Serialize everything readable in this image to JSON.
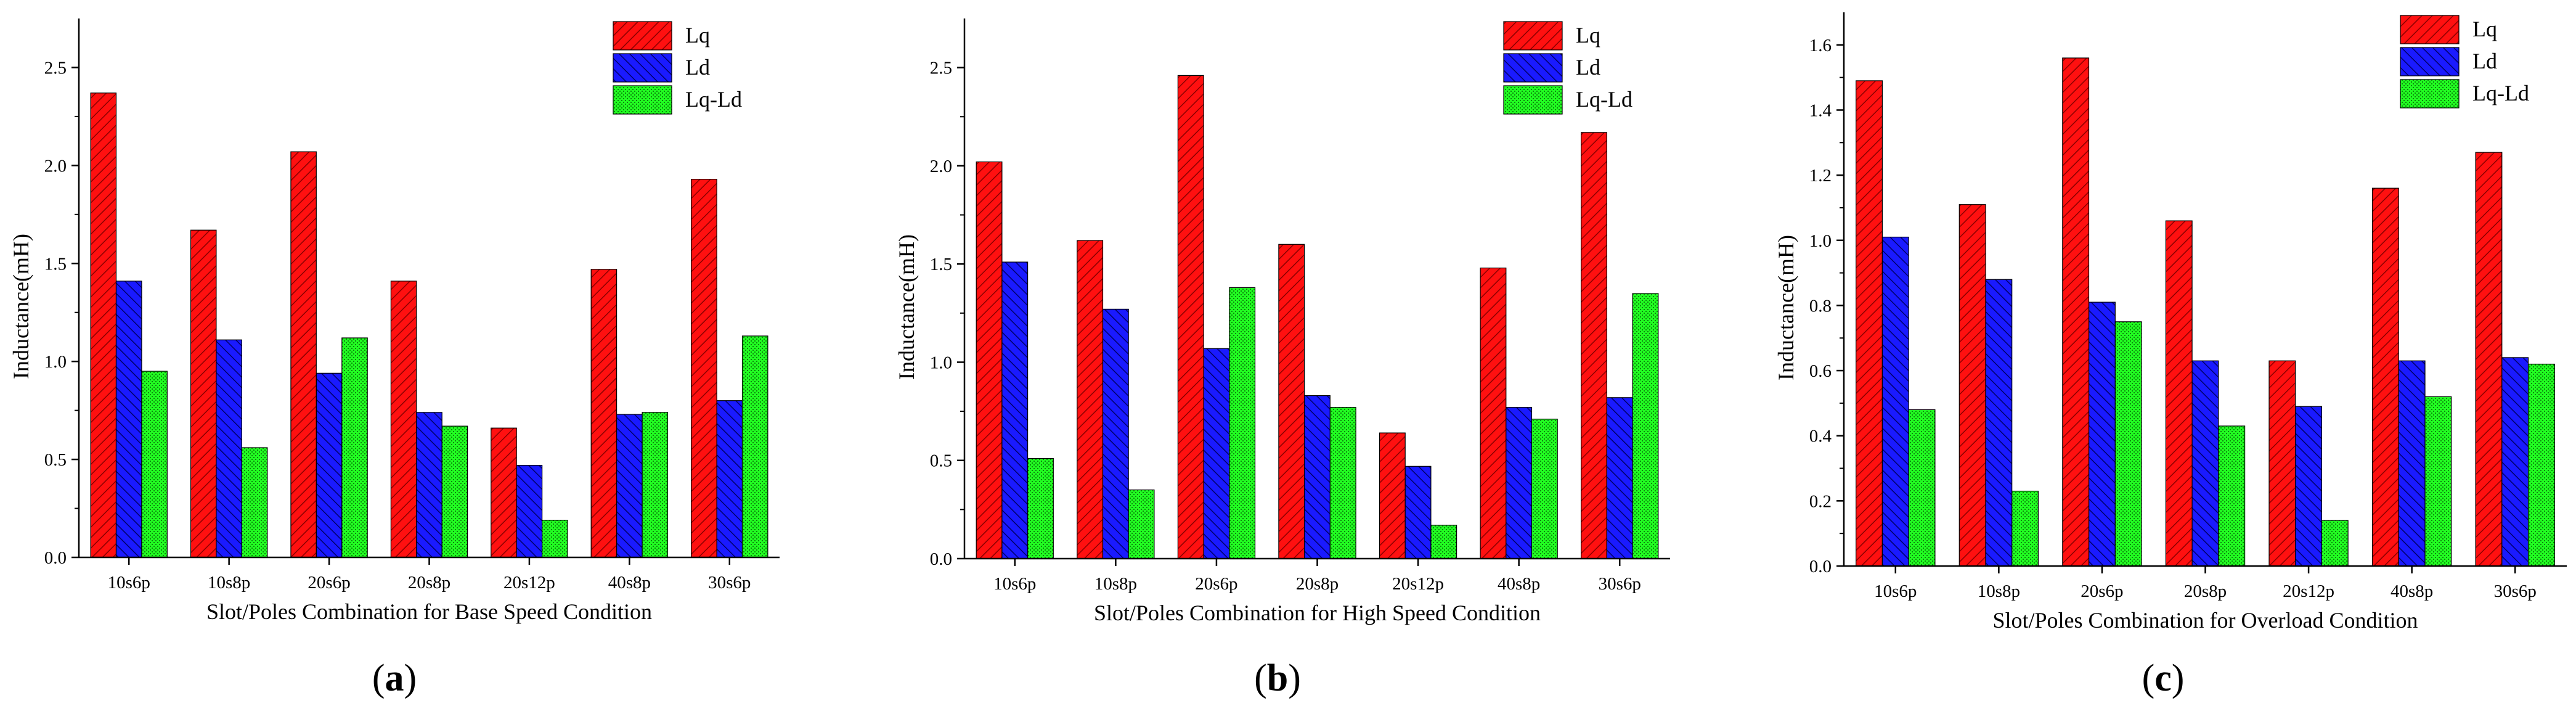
{
  "colors": {
    "Lq": "#ff1010",
    "Ld": "#1a1aff",
    "Lq-Ld": "#22ff22",
    "axis": "#000000"
  },
  "chart_data": [
    {
      "type": "bar",
      "panel": "a",
      "panel_label": {
        "open": "(",
        "letter": "a",
        "close": ")"
      },
      "xlabel": "Slot/Poles Combination for Base Speed Condition",
      "ylabel": "Inductance(mH)",
      "ylim": [
        0,
        2.75
      ],
      "yticks": [
        0.0,
        0.5,
        1.0,
        1.5,
        2.0,
        2.5
      ],
      "ytick_labels": [
        "0.0",
        "0.5",
        "1.0",
        "1.5",
        "2.0",
        "2.5"
      ],
      "categories": [
        "10s6p",
        "10s8p",
        "20s6p",
        "20s8p",
        "20s12p",
        "40s8p",
        "30s6p"
      ],
      "legend_position": "top-right",
      "series": [
        {
          "name": "Lq",
          "values": [
            2.37,
            1.67,
            2.07,
            1.41,
            0.66,
            1.47,
            1.93
          ]
        },
        {
          "name": "Ld",
          "values": [
            1.41,
            1.11,
            0.94,
            0.74,
            0.47,
            0.73,
            0.8
          ]
        },
        {
          "name": "Lq-Ld",
          "values": [
            0.95,
            0.56,
            1.12,
            0.67,
            0.19,
            0.74,
            1.13
          ]
        }
      ]
    },
    {
      "type": "bar",
      "panel": "b",
      "panel_label": {
        "open": "(",
        "letter": "b",
        "close": ")"
      },
      "xlabel": "Slot/Poles Combination for High Speed Condition",
      "ylabel": "Inductance(mH)",
      "ylim": [
        0,
        2.75
      ],
      "yticks": [
        0.0,
        0.5,
        1.0,
        1.5,
        2.0,
        2.5
      ],
      "ytick_labels": [
        "0.0",
        "0.5",
        "1.0",
        "1.5",
        "2.0",
        "2.5"
      ],
      "categories": [
        "10s6p",
        "10s8p",
        "20s6p",
        "20s8p",
        "20s12p",
        "40s8p",
        "30s6p"
      ],
      "legend_position": "top-right",
      "series": [
        {
          "name": "Lq",
          "values": [
            2.02,
            1.62,
            2.46,
            1.6,
            0.64,
            1.48,
            2.17
          ]
        },
        {
          "name": "Ld",
          "values": [
            1.51,
            1.27,
            1.07,
            0.83,
            0.47,
            0.77,
            0.82
          ]
        },
        {
          "name": "Lq-Ld",
          "values": [
            0.51,
            0.35,
            1.38,
            0.77,
            0.17,
            0.71,
            1.35
          ]
        }
      ]
    },
    {
      "type": "bar",
      "panel": "c",
      "panel_label": {
        "open": "(",
        "letter": "c",
        "close": ")"
      },
      "xlabel": "Slot/Poles Combination for Overload Condition",
      "ylabel": "Inductance(mH)",
      "ylim": [
        0,
        1.7
      ],
      "yticks": [
        0.0,
        0.2,
        0.4,
        0.6,
        0.8,
        1.0,
        1.2,
        1.4,
        1.6
      ],
      "ytick_labels": [
        "0.0",
        "0.2",
        "0.4",
        "0.6",
        "0.8",
        "1.0",
        "1.2",
        "1.4",
        "1.6"
      ],
      "categories": [
        "10s6p",
        "10s8p",
        "20s6p",
        "20s8p",
        "20s12p",
        "40s8p",
        "30s6p"
      ],
      "legend_position": "top-right",
      "series": [
        {
          "name": "Lq",
          "values": [
            1.49,
            1.11,
            1.56,
            1.06,
            0.63,
            1.16,
            1.27
          ]
        },
        {
          "name": "Ld",
          "values": [
            1.01,
            0.88,
            0.81,
            0.63,
            0.49,
            0.63,
            0.64
          ]
        },
        {
          "name": "Lq-Ld",
          "values": [
            0.48,
            0.23,
            0.75,
            0.43,
            0.14,
            0.52,
            0.62
          ]
        }
      ]
    }
  ]
}
